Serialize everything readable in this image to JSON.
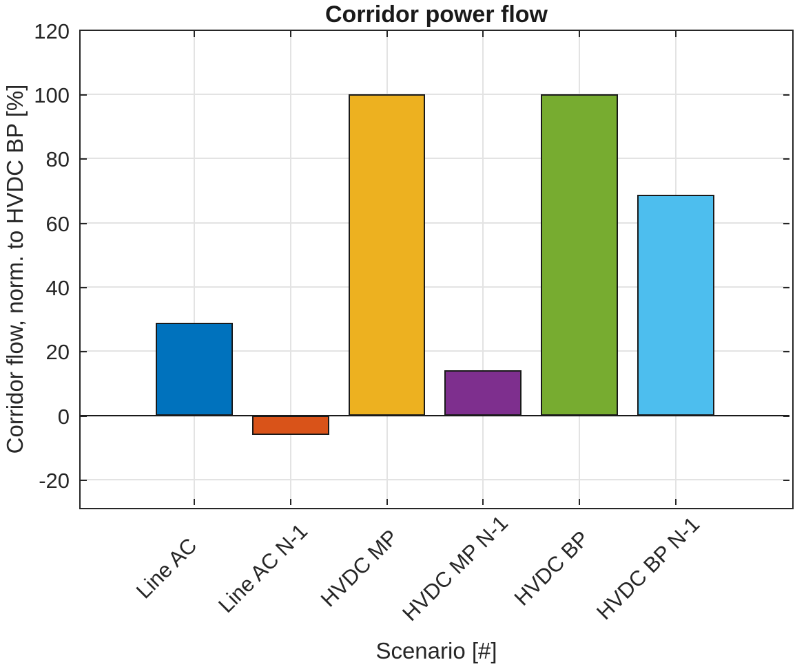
{
  "figure": {
    "background": "#ffffff"
  },
  "chart_data": {
    "type": "bar",
    "title": "Corridor power flow",
    "xlabel": "Scenario [#]",
    "ylabel": "Corridor flow, norm. to HVDC BP [%]",
    "categories": [
      "Line AC",
      "Line AC N-1",
      "HVDC MP",
      "HVDC MP N-1",
      "HVDC BP",
      "HVDC BP N-1"
    ],
    "values": [
      28.9,
      -6.1,
      100,
      14.1,
      100,
      68.8
    ],
    "bar_colors": [
      "#0072BD",
      "#D95319",
      "#EDB120",
      "#7E2F8E",
      "#77AC30",
      "#4DBEEE"
    ],
    "bar_edge_color": "#1a1a1a",
    "baseline_value": 0,
    "yticks": [
      -20,
      0,
      20,
      40,
      60,
      80,
      100,
      120
    ],
    "ytick_labels": [
      "-20",
      "0",
      "20",
      "40",
      "60",
      "80",
      "100",
      "120"
    ],
    "ylim": [
      -28.4,
      120.2
    ],
    "xlim": [
      -0.19,
      7.19
    ],
    "bar_width_units": 0.8,
    "grid": true,
    "grid_color": "#e3e3e3",
    "axis_color": "#262626",
    "text_color": "#262626",
    "legend": null
  }
}
